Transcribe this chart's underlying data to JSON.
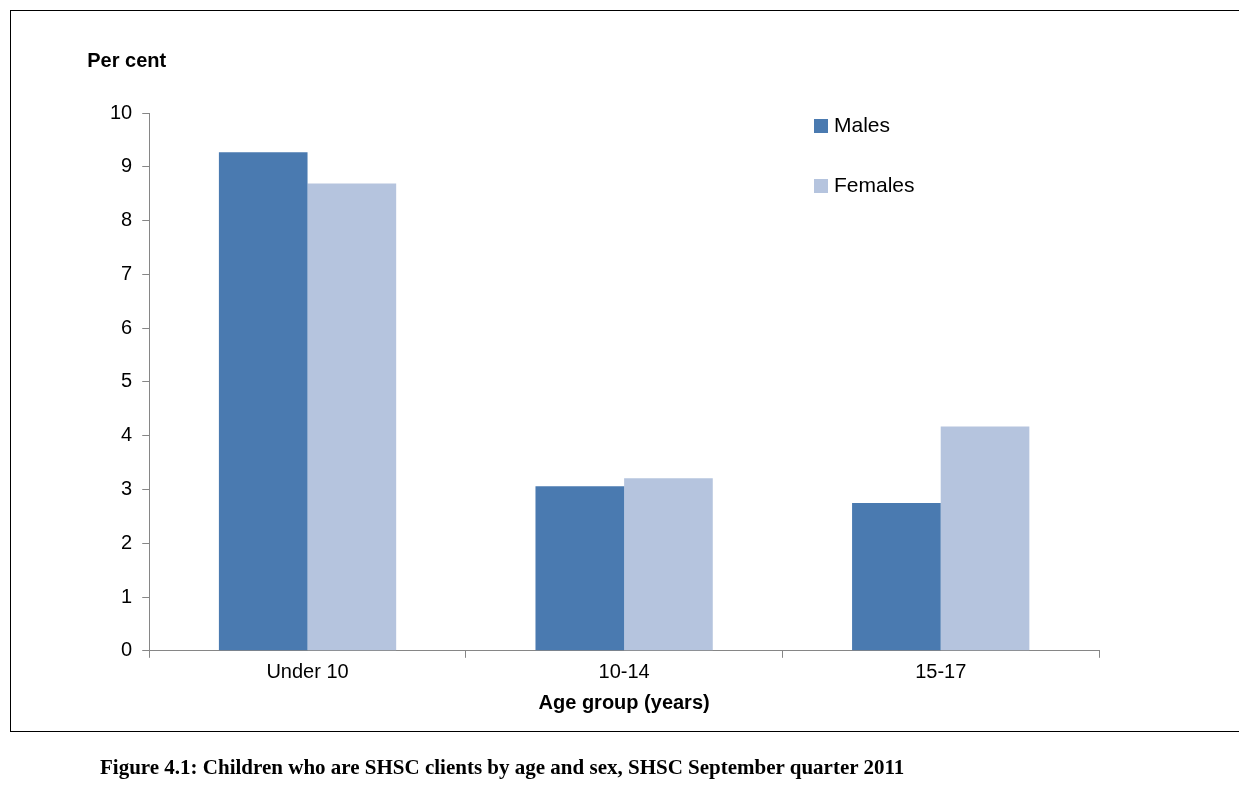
{
  "chart_data": {
    "type": "bar",
    "title": "Figure 4.1: Children who are SHSC clients by age and sex, SHSC September quarter 2011",
    "ylabel": "Per cent",
    "xlabel": "Age group (years)",
    "categories": [
      "Under 10",
      "10-14",
      "15-17"
    ],
    "series": [
      {
        "name": "Males",
        "color": "#4a7ab0",
        "values": [
          9.27,
          3.06,
          2.75
        ]
      },
      {
        "name": "Females",
        "color": "#b5c4de",
        "values": [
          8.69,
          3.21,
          4.17
        ]
      }
    ],
    "ylim": [
      0,
      10
    ],
    "yticks": [
      0,
      1,
      2,
      3,
      4,
      5,
      6,
      7,
      8,
      9,
      10
    ],
    "grid": false,
    "legend": "top right"
  }
}
